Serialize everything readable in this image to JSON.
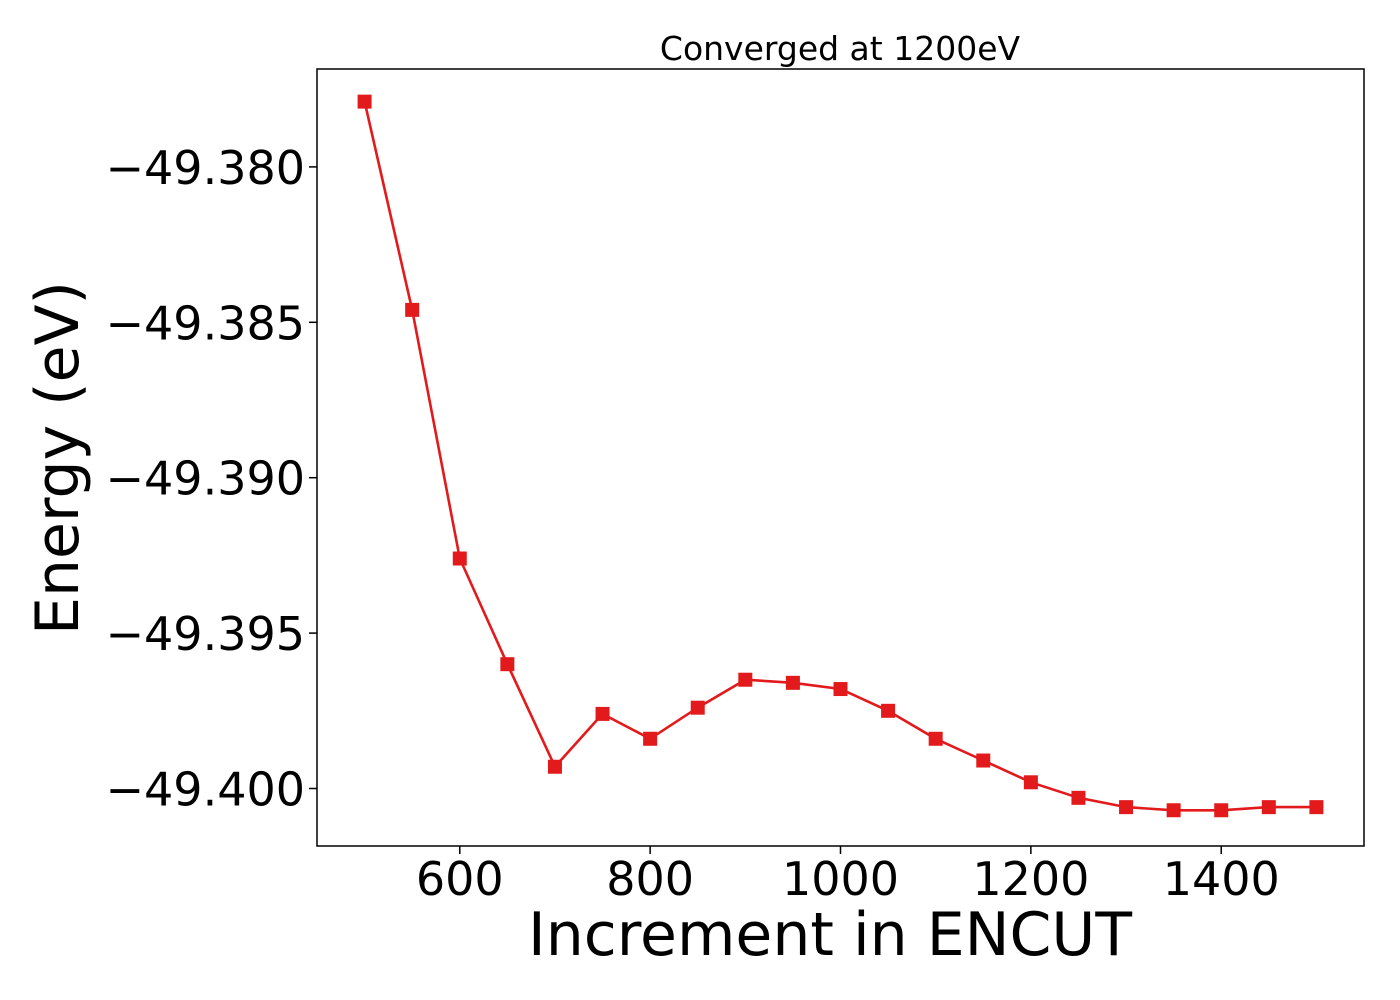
{
  "chart_data": {
    "type": "line",
    "title": "Converged at 1200eV",
    "xlabel": "Increment in ENCUT",
    "ylabel": "Energy (eV)",
    "xlim": [
      450,
      1550
    ],
    "ylim": [
      -49.40185,
      -49.37685
    ],
    "xticks": [
      600,
      800,
      1000,
      1200,
      1400
    ],
    "yticks": [
      -49.38,
      -49.385,
      -49.39,
      -49.395,
      -49.4
    ],
    "ytick_labels": [
      "−49.380",
      "−49.385",
      "−49.390",
      "−49.395",
      "−49.400"
    ],
    "grid": false,
    "series": [
      {
        "color": "#e31a1c",
        "marker": "square",
        "x": [
          500,
          550,
          600,
          650,
          700,
          750,
          800,
          850,
          900,
          950,
          1000,
          1050,
          1100,
          1150,
          1200,
          1250,
          1300,
          1350,
          1400,
          1450,
          1500
        ],
        "y": [
          -49.3779,
          -49.3846,
          -49.3926,
          -49.396,
          -49.3993,
          -49.3976,
          -49.3984,
          -49.3974,
          -49.3965,
          -49.3966,
          -49.3968,
          -49.3975,
          -49.3984,
          -49.3991,
          -49.3998,
          -49.4003,
          -49.4006,
          -49.4007,
          -49.4007,
          -49.4006,
          -49.4006
        ]
      }
    ]
  }
}
